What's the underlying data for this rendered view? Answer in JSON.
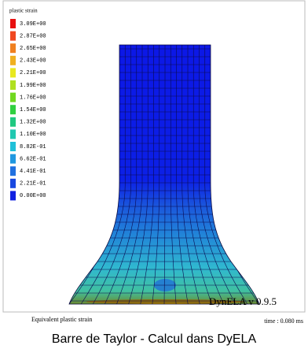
{
  "figure": {
    "legend": {
      "title": "plastic strain",
      "entries": [
        {
          "label": "3.09E+00",
          "color": "#e81010"
        },
        {
          "label": "2.87E+00",
          "color": "#f04820"
        },
        {
          "label": "2.65E+00",
          "color": "#f08020"
        },
        {
          "label": "2.43E+00",
          "color": "#f0b020"
        },
        {
          "label": "2.21E+00",
          "color": "#e8e820"
        },
        {
          "label": "1.99E+00",
          "color": "#b0e020"
        },
        {
          "label": "1.76E+00",
          "color": "#70d820"
        },
        {
          "label": "1.54E+00",
          "color": "#30d040"
        },
        {
          "label": "1.32E+00",
          "color": "#20c880"
        },
        {
          "label": "1.10E+00",
          "color": "#20c8b0"
        },
        {
          "label": "8.82E-01",
          "color": "#20c0d8"
        },
        {
          "label": "6.62E-01",
          "color": "#2098e0"
        },
        {
          "label": "4.41E-01",
          "color": "#2070e0"
        },
        {
          "label": "2.21E-01",
          "color": "#1848e0"
        },
        {
          "label": "0.00E+00",
          "color": "#1020e0"
        }
      ]
    },
    "software": "DynELA v 0.9.5",
    "field_name": "Equivalent plastic strain",
    "time": "time : 0.080 ms"
  },
  "caption": "Barre de Taylor - Calcul dans DyELA"
}
